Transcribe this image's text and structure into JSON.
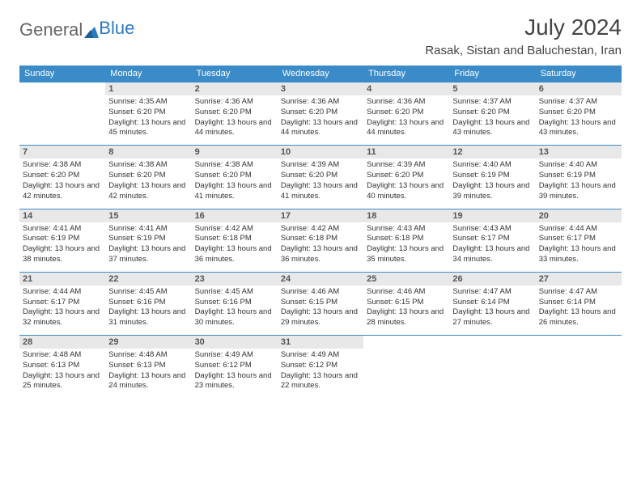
{
  "logo": {
    "text1": "General",
    "text2": "Blue"
  },
  "title": "July 2024",
  "location": "Rasak, Sistan and Baluchestan, Iran",
  "colors": {
    "header_bg": "#3b8bc9",
    "header_text": "#ffffff",
    "daynum_bg": "#e8e8e8",
    "border": "#3b8bc9",
    "logo_blue": "#2a7ac0",
    "body_text": "#333333"
  },
  "weekdays": [
    "Sunday",
    "Monday",
    "Tuesday",
    "Wednesday",
    "Thursday",
    "Friday",
    "Saturday"
  ],
  "weeks": [
    [
      {
        "n": "",
        "sr": "",
        "ss": "",
        "dl": ""
      },
      {
        "n": "1",
        "sr": "Sunrise: 4:35 AM",
        "ss": "Sunset: 6:20 PM",
        "dl": "Daylight: 13 hours and 45 minutes."
      },
      {
        "n": "2",
        "sr": "Sunrise: 4:36 AM",
        "ss": "Sunset: 6:20 PM",
        "dl": "Daylight: 13 hours and 44 minutes."
      },
      {
        "n": "3",
        "sr": "Sunrise: 4:36 AM",
        "ss": "Sunset: 6:20 PM",
        "dl": "Daylight: 13 hours and 44 minutes."
      },
      {
        "n": "4",
        "sr": "Sunrise: 4:36 AM",
        "ss": "Sunset: 6:20 PM",
        "dl": "Daylight: 13 hours and 44 minutes."
      },
      {
        "n": "5",
        "sr": "Sunrise: 4:37 AM",
        "ss": "Sunset: 6:20 PM",
        "dl": "Daylight: 13 hours and 43 minutes."
      },
      {
        "n": "6",
        "sr": "Sunrise: 4:37 AM",
        "ss": "Sunset: 6:20 PM",
        "dl": "Daylight: 13 hours and 43 minutes."
      }
    ],
    [
      {
        "n": "7",
        "sr": "Sunrise: 4:38 AM",
        "ss": "Sunset: 6:20 PM",
        "dl": "Daylight: 13 hours and 42 minutes."
      },
      {
        "n": "8",
        "sr": "Sunrise: 4:38 AM",
        "ss": "Sunset: 6:20 PM",
        "dl": "Daylight: 13 hours and 42 minutes."
      },
      {
        "n": "9",
        "sr": "Sunrise: 4:38 AM",
        "ss": "Sunset: 6:20 PM",
        "dl": "Daylight: 13 hours and 41 minutes."
      },
      {
        "n": "10",
        "sr": "Sunrise: 4:39 AM",
        "ss": "Sunset: 6:20 PM",
        "dl": "Daylight: 13 hours and 41 minutes."
      },
      {
        "n": "11",
        "sr": "Sunrise: 4:39 AM",
        "ss": "Sunset: 6:20 PM",
        "dl": "Daylight: 13 hours and 40 minutes."
      },
      {
        "n": "12",
        "sr": "Sunrise: 4:40 AM",
        "ss": "Sunset: 6:19 PM",
        "dl": "Daylight: 13 hours and 39 minutes."
      },
      {
        "n": "13",
        "sr": "Sunrise: 4:40 AM",
        "ss": "Sunset: 6:19 PM",
        "dl": "Daylight: 13 hours and 39 minutes."
      }
    ],
    [
      {
        "n": "14",
        "sr": "Sunrise: 4:41 AM",
        "ss": "Sunset: 6:19 PM",
        "dl": "Daylight: 13 hours and 38 minutes."
      },
      {
        "n": "15",
        "sr": "Sunrise: 4:41 AM",
        "ss": "Sunset: 6:19 PM",
        "dl": "Daylight: 13 hours and 37 minutes."
      },
      {
        "n": "16",
        "sr": "Sunrise: 4:42 AM",
        "ss": "Sunset: 6:18 PM",
        "dl": "Daylight: 13 hours and 36 minutes."
      },
      {
        "n": "17",
        "sr": "Sunrise: 4:42 AM",
        "ss": "Sunset: 6:18 PM",
        "dl": "Daylight: 13 hours and 36 minutes."
      },
      {
        "n": "18",
        "sr": "Sunrise: 4:43 AM",
        "ss": "Sunset: 6:18 PM",
        "dl": "Daylight: 13 hours and 35 minutes."
      },
      {
        "n": "19",
        "sr": "Sunrise: 4:43 AM",
        "ss": "Sunset: 6:17 PM",
        "dl": "Daylight: 13 hours and 34 minutes."
      },
      {
        "n": "20",
        "sr": "Sunrise: 4:44 AM",
        "ss": "Sunset: 6:17 PM",
        "dl": "Daylight: 13 hours and 33 minutes."
      }
    ],
    [
      {
        "n": "21",
        "sr": "Sunrise: 4:44 AM",
        "ss": "Sunset: 6:17 PM",
        "dl": "Daylight: 13 hours and 32 minutes."
      },
      {
        "n": "22",
        "sr": "Sunrise: 4:45 AM",
        "ss": "Sunset: 6:16 PM",
        "dl": "Daylight: 13 hours and 31 minutes."
      },
      {
        "n": "23",
        "sr": "Sunrise: 4:45 AM",
        "ss": "Sunset: 6:16 PM",
        "dl": "Daylight: 13 hours and 30 minutes."
      },
      {
        "n": "24",
        "sr": "Sunrise: 4:46 AM",
        "ss": "Sunset: 6:15 PM",
        "dl": "Daylight: 13 hours and 29 minutes."
      },
      {
        "n": "25",
        "sr": "Sunrise: 4:46 AM",
        "ss": "Sunset: 6:15 PM",
        "dl": "Daylight: 13 hours and 28 minutes."
      },
      {
        "n": "26",
        "sr": "Sunrise: 4:47 AM",
        "ss": "Sunset: 6:14 PM",
        "dl": "Daylight: 13 hours and 27 minutes."
      },
      {
        "n": "27",
        "sr": "Sunrise: 4:47 AM",
        "ss": "Sunset: 6:14 PM",
        "dl": "Daylight: 13 hours and 26 minutes."
      }
    ],
    [
      {
        "n": "28",
        "sr": "Sunrise: 4:48 AM",
        "ss": "Sunset: 6:13 PM",
        "dl": "Daylight: 13 hours and 25 minutes."
      },
      {
        "n": "29",
        "sr": "Sunrise: 4:48 AM",
        "ss": "Sunset: 6:13 PM",
        "dl": "Daylight: 13 hours and 24 minutes."
      },
      {
        "n": "30",
        "sr": "Sunrise: 4:49 AM",
        "ss": "Sunset: 6:12 PM",
        "dl": "Daylight: 13 hours and 23 minutes."
      },
      {
        "n": "31",
        "sr": "Sunrise: 4:49 AM",
        "ss": "Sunset: 6:12 PM",
        "dl": "Daylight: 13 hours and 22 minutes."
      },
      {
        "n": "",
        "sr": "",
        "ss": "",
        "dl": ""
      },
      {
        "n": "",
        "sr": "",
        "ss": "",
        "dl": ""
      },
      {
        "n": "",
        "sr": "",
        "ss": "",
        "dl": ""
      }
    ]
  ]
}
